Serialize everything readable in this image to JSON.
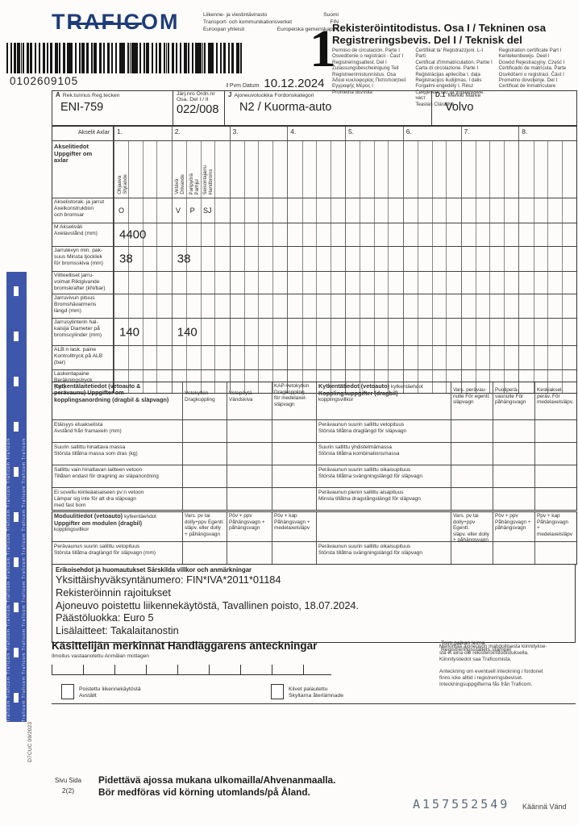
{
  "header": {
    "logo": "TRAFICOM",
    "agency": [
      {
        "left": "Liikenne- ja viestintävirasto",
        "right": "Suomi"
      },
      {
        "left": "Transport- och kommunikationsverket",
        "right": "FIN"
      },
      {
        "left": "Euroopan yhteisö",
        "right": "Europeiska gemenskapen"
      }
    ],
    "barcode_number": "0102609105",
    "big_number": "1",
    "title_fi": "Rekisteröintitodistus. Osa I / Tekninen osa",
    "title_sv": "Registreringsbevis. Del I / Teknisk del",
    "lang_columns": {
      "col1": [
        "Permiso de circulación. Parte I",
        "Osvedčenie o registrácii - Časť I",
        "Registreringsattest. Del I",
        "Zulassungsbescheinigung Teil",
        "Registreerimistunnistus. Osa",
        "Άδεια κυκλοφορίας Πιστοποιητικό",
        "Εγγραφής Μέρος Ι",
        "Prometna dozvola"
      ],
      "col2": [
        "Ċertifikat ta' Reġistrazzjoni. L-I Parti",
        "Certificat d'immatriculation. Partie I",
        "Carta di circolazione. Parte I",
        "Reģistrācijas apliecība I. daļa",
        "Registracijos liudijimas. I dalis",
        "Forgalmi engedély I. Rész",
        "Свидетелство за управление. част",
        "Teastas Cláraithe"
      ],
      "col3": [
        "Registration certificate Part I",
        "Kentekenbewijs. Deel I",
        "Dowód Rejestracyjny. Część I",
        "Certificado de matrícula. Parte",
        "Osvědčení o registraci. Část I",
        "Prometno dovoljenje. Del I",
        "Certificat de înmatriculare"
      ]
    },
    "date_code": "I",
    "date_label": "Pvm Datum",
    "date_value": "10.12.2024"
  },
  "id_row": {
    "f1_code": "A",
    "f1_label": "Rek.tunnus Reg.tecken",
    "f1_value": "ENI-759",
    "f2_label": "Järj.nro Ordn.nr\nOsa. Del I / II",
    "f2_value": "022/008",
    "f3_code": "J",
    "f3_label": "Ajoneuvoluokka Fordonskategori",
    "f3_value": "N2 / Kuorma-auto",
    "f4_code": "D.1",
    "f4_label": "Merkki Märke",
    "f4_value": "Volvo"
  },
  "axle_table": {
    "header_label": "Akselit Axlar",
    "columns": [
      "1.",
      "2.",
      "3.",
      "4.",
      "5.",
      "6.",
      "7.",
      "8."
    ],
    "section_title": "Akselitiedot\nUppgifter om\naxlar",
    "axle1_vertical": "Ohjaava\nStyrande",
    "axle2_vertical_1": "Vetävä\nDrivande",
    "axle2_vertical_2": "Paripyörä\nParhjul",
    "axle2_vertical_3": "Seisontajarru\nHandbroms",
    "rows": [
      {
        "label": "Akselistorak. ja jarrut\nAxelkonstruktion\noch bromsar",
        "a1": [
          "O",
          "",
          "",
          ""
        ],
        "a2": [
          "V",
          "P",
          "SJ",
          ""
        ]
      },
      {
        "label": "M Akseliväli\nAxelavstånd (mm)",
        "a1": "4400",
        "a2": ""
      },
      {
        "label": "Jarrulevyn min. pak-\nsuus Minsta tjocklek\nför bromsskiva (mm)",
        "a1": "38",
        "a2": "38"
      },
      {
        "label": "Viitteelliset jarru-\nvoimat Riktgivande\nbromskrafter (kN/bar)",
        "a1": "",
        "a2": ""
      },
      {
        "label": "Jarruvivun pituus\nBromshävarmens\nlängd (mm)",
        "a1": "",
        "a2": ""
      },
      {
        "label": "Jarrusylinterin hal-\nkaisija Diameter på\nbromscylinder (mm)",
        "a1": "140",
        "a2": "140"
      },
      {
        "label": "ALB:n lask. paine\nKontrolltryck på ALB\n(bar)",
        "a1": "",
        "a2": ""
      },
      {
        "label": "Laskentapaine\nBeräkningstryck\n(bar)",
        "a1": "",
        "a2": ""
      }
    ]
  },
  "coupling": {
    "left_title": "Kytkentälaitetiedot (vetoauto &\nperävaunu) Uppgifter om\nkopplingsanordning (dragbil & släpvagn)",
    "left_cols": [
      "Vetokytkin\nDragkoppling",
      "Vetopöytä\nVändskiva",
      "KAP-vetokytkin\nDragkoppling\nför medelaxel-\nsläpvagn"
    ],
    "right_title_fi_bold": "Kytkentätiedot (vetoauto) ",
    "right_title_fi_reg": "kytkentäehdot",
    "right_title_sv_bold": "Kopplingsuppgifter (dragbil)",
    "right_title_sv_reg": "kopplingsvillkor",
    "right_cols": [
      "Vars. perävau-\nnulle För egentl.\nsläpvagn",
      "Puoliperä-\nvaunulle För\npåhängsvagn",
      "Keskiaksel.\nperäv. För\nmedelaxelsläpv."
    ],
    "left_rows": [
      "Etäisyys etuakselista\nAvstånd från framaxeln (mm)",
      "Suurin sallittu hinattava massa\nStörsta tillåtna massa som dras (kg)",
      "Sallittu vain hinattavan laitteen vetoon\nTillåten endast för dragning av släpanordning",
      "Ei sovellu kiinteäaisaiseen pv:n vetoon\nLämpar sig inte för att dra släpvagn\nmed fast bom"
    ],
    "right_rows": [
      "Perävaunun suurin sallittu vetopituus\nStörsta tillåtna draglängd för släpvagn",
      "Suurin sallittu yhdistelmämassa\nStörsta tillåtna kombinationsmassa",
      "Perävaunun suurin sallittu oikaisupituus\nStörsta tillåtna svängningslängd för släpvagn",
      "Perävaunun pienin sallittu aisapituus\nMinsta tillåtna dragstångslängd för släpvagn"
    ]
  },
  "module": {
    "title_fi_bold": "Moduulitiedot (vetoauto) ",
    "title_fi_reg": "kytkentäehdot",
    "title_sv_bold": "Uppgifter om modulen (dragbil)",
    "title_sv_reg": "kopplingsvillkor",
    "cols_left": [
      "Vars. pv tai\ndolly+ppv Egentl.\nsläpv. eller dolly\n+ påhängsvagn",
      "Pöv + ppv\nPåhängsvagn +\npåhängsvagn",
      "Pöv + kap\nPåhängsvagn +\nmedelaxelsläpv"
    ],
    "cols_right": [
      "Vars. pv tai\ndolly+ppv Egentl.\nsläpv. eller dolly\n+ påhängsvagn",
      "Pöv + ppv\nPåhängsvagn +\npåhängsvagn",
      "Ppv + kap\nPåhängsvagn +\nmedelaxelsläpv"
    ],
    "row_left": "Perävaunun suurin sallittu vetopituus\nStörsta tillåtna draglängd för släpvagn (mm)",
    "row_right": "Perävaunun suurin sallittu oikaisupituus\nStörsta tillåtna svängningslängd för släpvagn"
  },
  "special": {
    "title": "Erikoisehdot ja huomautukset Särskilda villkor och anmärkningar",
    "lines": [
      "Yksittäishyväksyntänumero: FIN*IVA*2011*01184",
      "Rekisteröinnin rajoitukset",
      "Ajoneuvo poistettu liikennekäytöstä, Tavallinen poisto, 18.07.2024.",
      "Päästöluokka: Euro 5",
      "Lisälaitteet: Takalaitanostin"
    ]
  },
  "handler": {
    "title": "Käsittelijän merkinnät Handläggarens anteckningar",
    "stamp_label": "Toim.paikan leima\nRegistreringsställets stämpel",
    "received_label": "Ilmoitus vastaanotettu Anmälan mottagen",
    "checkbox1": "Poistettu liikennekäytöstä\nAvställt",
    "checkbox2": "Kilvet palautettu\nSkyltarna återlämnade",
    "note_fi": "Merkintää ajoneuvon mahdollisesta kiinnitykse-\nstä ei aina ole rekisteröintitodistuksella.\nKiinnitystiedot saa Traficomista.",
    "note_sv": "Anteckning om eventuell inteckning i fordonet\nfinns icke alltid i registreringsbeviset.\nInteckningsuppgifterna fås från Traficom."
  },
  "footer": {
    "page_label": "Sivu Sida",
    "page_value": "2(2)",
    "keep_fi": "Pidettävä ajossa mukana ulkomailla/Ahvenanmaalla.",
    "keep_sv": "Bör medföras vid körning utomlands/på Åland.",
    "serial": "A157552549",
    "turn_label": "Käännä Vänd",
    "doc_code": "D7CUC 09/2023",
    "strip_text": "Traficom Traficom Traficom Traficom Traficom Traficom Traficom Traficom Traficom Traficom Traficom Traficom"
  },
  "colors": {
    "brand_blue": "#1d3c78",
    "strip_blue": "#3e57ab"
  }
}
